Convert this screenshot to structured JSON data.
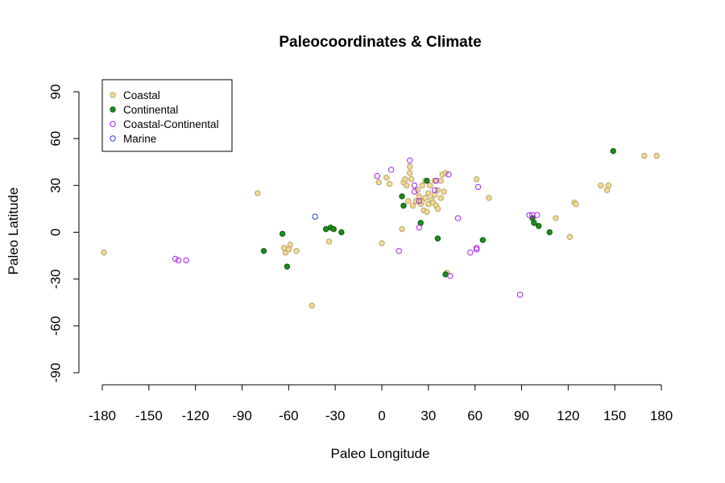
{
  "chart_data": {
    "type": "scatter",
    "title": "Paleocoordinates & Climate",
    "xlabel": "Paleo Longitude",
    "ylabel": "Paleo Latitude",
    "xlim": [
      -180,
      180
    ],
    "ylim": [
      -90,
      90
    ],
    "xticks": [
      "-180",
      "-150",
      "-120",
      "-90",
      "-60",
      "-30",
      "0",
      "30",
      "60",
      "90",
      "120",
      "150",
      "180"
    ],
    "yticks": [
      "-90",
      "-60",
      "-30",
      "0",
      "30",
      "60",
      "90"
    ],
    "grid": false,
    "legend_position": "top-left",
    "series": [
      {
        "name": "Coastal",
        "fill": "#f0dc96",
        "stroke": "#b9a26a",
        "hollow": false,
        "points": [
          [
            -179,
            -13
          ],
          [
            -80,
            25
          ],
          [
            -63,
            -10
          ],
          [
            -62,
            -13
          ],
          [
            -60,
            -11
          ],
          [
            -59,
            -8
          ],
          [
            -55,
            -12
          ],
          [
            -45,
            -47
          ],
          [
            -34,
            -6
          ],
          [
            -2,
            32
          ],
          [
            0,
            -7
          ],
          [
            3,
            35
          ],
          [
            5,
            31
          ],
          [
            13,
            2
          ],
          [
            14,
            32
          ],
          [
            15,
            34
          ],
          [
            16,
            30
          ],
          [
            17,
            20
          ],
          [
            18,
            38
          ],
          [
            18,
            42
          ],
          [
            19,
            34
          ],
          [
            20,
            17
          ],
          [
            22,
            20
          ],
          [
            23,
            27
          ],
          [
            24,
            23
          ],
          [
            25,
            18
          ],
          [
            26,
            20
          ],
          [
            26,
            30
          ],
          [
            27,
            14
          ],
          [
            28,
            22
          ],
          [
            28,
            33
          ],
          [
            29,
            13
          ],
          [
            30,
            25
          ],
          [
            30,
            18
          ],
          [
            31,
            30
          ],
          [
            32,
            21
          ],
          [
            33,
            19
          ],
          [
            34,
            24
          ],
          [
            34,
            33
          ],
          [
            35,
            17
          ],
          [
            36,
            15
          ],
          [
            36,
            27
          ],
          [
            38,
            33
          ],
          [
            38,
            22
          ],
          [
            39,
            37
          ],
          [
            40,
            26
          ],
          [
            41,
            38
          ],
          [
            42,
            -26
          ],
          [
            61,
            34
          ],
          [
            69,
            22
          ],
          [
            112,
            9
          ],
          [
            121,
            -3
          ],
          [
            124,
            19
          ],
          [
            125,
            18
          ],
          [
            141,
            30
          ],
          [
            145,
            27
          ],
          [
            146,
            30
          ],
          [
            169,
            49
          ],
          [
            177,
            49
          ]
        ]
      },
      {
        "name": "Continental",
        "fill": "#1e8c1e",
        "stroke": "#0f5a0f",
        "hollow": false,
        "points": [
          [
            -76,
            -12
          ],
          [
            -64,
            -1
          ],
          [
            -61,
            -22
          ],
          [
            -36,
            2
          ],
          [
            -33,
            3
          ],
          [
            -31,
            2
          ],
          [
            -26,
            0
          ],
          [
            13,
            23
          ],
          [
            14,
            17
          ],
          [
            25,
            6
          ],
          [
            29,
            33
          ],
          [
            36,
            -4
          ],
          [
            41,
            -27
          ],
          [
            65,
            -5
          ],
          [
            97,
            9
          ],
          [
            98,
            6
          ],
          [
            101,
            4
          ],
          [
            108,
            0
          ],
          [
            149,
            52
          ]
        ]
      },
      {
        "name": "Coastal-Continental",
        "fill": "none",
        "stroke": "#a020f0",
        "hollow": true,
        "points": [
          [
            -133,
            -17
          ],
          [
            -131,
            -18
          ],
          [
            -126,
            -18
          ],
          [
            -3,
            36
          ],
          [
            6,
            40
          ],
          [
            11,
            -12
          ],
          [
            18,
            46
          ],
          [
            21,
            30
          ],
          [
            21,
            26
          ],
          [
            24,
            20
          ],
          [
            24,
            3
          ],
          [
            34,
            27
          ],
          [
            35,
            33
          ],
          [
            43,
            37
          ],
          [
            44,
            -28
          ],
          [
            49,
            9
          ],
          [
            57,
            -13
          ],
          [
            61,
            -10
          ],
          [
            61,
            -11
          ],
          [
            62,
            29
          ],
          [
            89,
            -40
          ],
          [
            95,
            11
          ],
          [
            97,
            11
          ],
          [
            100,
            11
          ]
        ]
      },
      {
        "name": "Marine",
        "fill": "none",
        "stroke": "#1f3cff",
        "hollow": true,
        "points": [
          [
            -43,
            10
          ]
        ]
      }
    ]
  }
}
